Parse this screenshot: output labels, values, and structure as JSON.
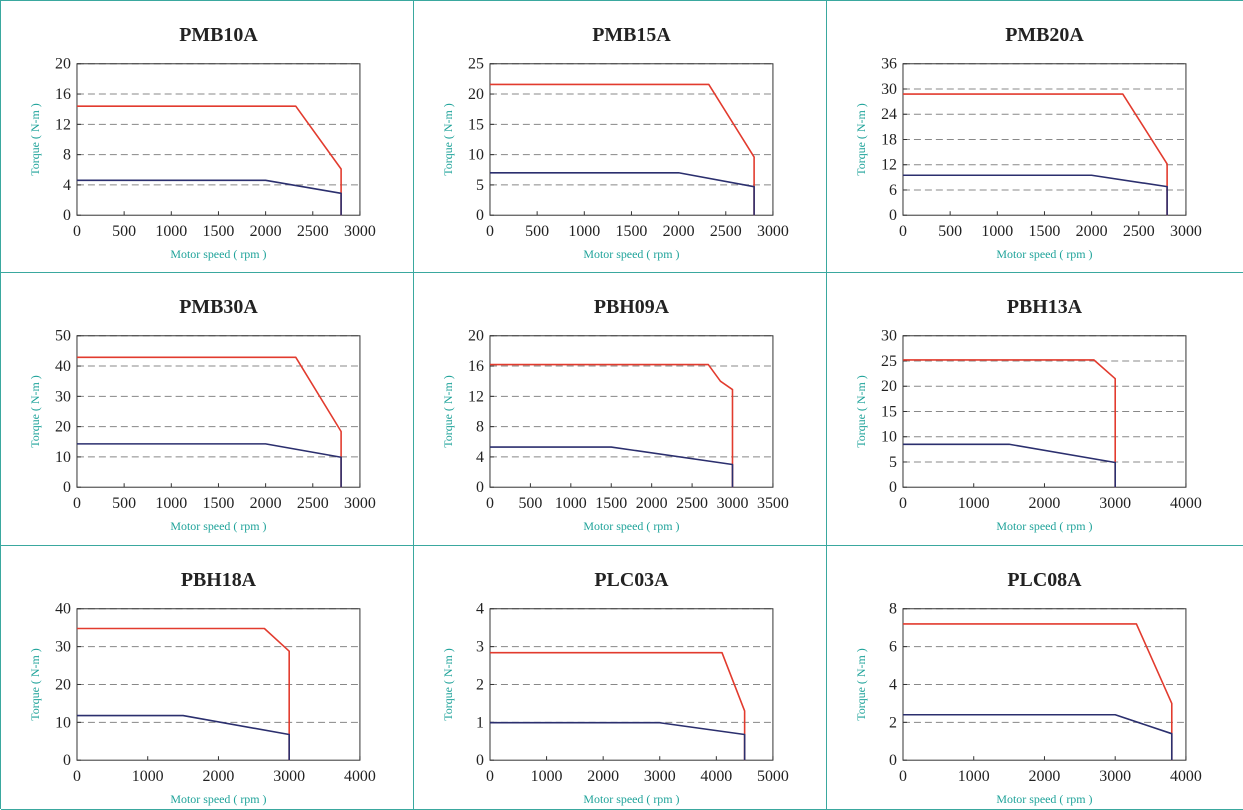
{
  "colors": {
    "accent": "#1fa39a",
    "peak_curve": "#e23b2e",
    "rated_curve": "#2b2f6e",
    "gridline": "#888888",
    "border": "#3aa89f"
  },
  "chart_data": [
    {
      "type": "line",
      "title": "PMB10A",
      "xlabel": "Motor speed ( rpm )",
      "ylabel": "Torque ( N-m )",
      "xlim": [
        0,
        3000
      ],
      "ylim": [
        0,
        20
      ],
      "xticks": [
        0,
        500,
        1000,
        1500,
        2000,
        2500,
        3000
      ],
      "yticks": [
        0,
        4,
        8,
        12,
        16,
        20
      ],
      "grid": "horizontal-dashed",
      "series": [
        {
          "x": [
            0,
            2320,
            2800,
            2800
          ],
          "y": [
            14.4,
            14.4,
            6.1,
            0
          ]
        },
        {
          "x": [
            0,
            2000,
            2800,
            2800
          ],
          "y": [
            4.6,
            4.6,
            2.9,
            0
          ]
        }
      ]
    },
    {
      "type": "line",
      "title": "PMB15A",
      "xlabel": "Motor speed ( rpm )",
      "ylabel": "Torque ( N-m )",
      "xlim": [
        0,
        3000
      ],
      "ylim": [
        0,
        25
      ],
      "xticks": [
        0,
        500,
        1000,
        1500,
        2000,
        2500,
        3000
      ],
      "yticks": [
        0,
        5,
        10,
        15,
        20,
        25
      ],
      "grid": "horizontal-dashed",
      "series": [
        {
          "x": [
            0,
            2320,
            2800,
            2800
          ],
          "y": [
            21.6,
            21.6,
            9.6,
            0
          ]
        },
        {
          "x": [
            0,
            2000,
            2800,
            2800
          ],
          "y": [
            7.0,
            7.0,
            4.7,
            0
          ]
        }
      ]
    },
    {
      "type": "line",
      "title": "PMB20A",
      "xlabel": "Motor speed ( rpm )",
      "ylabel": "Torque ( N-m )",
      "xlim": [
        0,
        3000
      ],
      "ylim": [
        0,
        36
      ],
      "xticks": [
        0,
        500,
        1000,
        1500,
        2000,
        2500,
        3000
      ],
      "yticks": [
        0,
        6,
        12,
        18,
        24,
        30,
        36
      ],
      "grid": "horizontal-dashed",
      "series": [
        {
          "x": [
            0,
            2330,
            2800,
            2800
          ],
          "y": [
            28.8,
            28.8,
            12.2,
            0
          ]
        },
        {
          "x": [
            0,
            2000,
            2800,
            2800
          ],
          "y": [
            9.5,
            9.5,
            6.8,
            0
          ]
        }
      ]
    },
    {
      "type": "line",
      "title": "PMB30A",
      "xlabel": "Motor speed ( rpm )",
      "ylabel": "Torque ( N-m )",
      "xlim": [
        0,
        3000
      ],
      "ylim": [
        0,
        50
      ],
      "xticks": [
        0,
        500,
        1000,
        1500,
        2000,
        2500,
        3000
      ],
      "yticks": [
        0,
        10,
        20,
        30,
        40,
        50
      ],
      "grid": "horizontal-dashed",
      "series": [
        {
          "x": [
            0,
            2320,
            2800,
            2800
          ],
          "y": [
            42.9,
            42.9,
            18.4,
            0
          ]
        },
        {
          "x": [
            0,
            2000,
            2800,
            2800
          ],
          "y": [
            14.3,
            14.3,
            9.9,
            0
          ]
        }
      ]
    },
    {
      "type": "line",
      "title": "PBH09A",
      "xlabel": "Motor speed ( rpm )",
      "ylabel": "Torque ( N-m )",
      "xlim": [
        0,
        3500
      ],
      "ylim": [
        0,
        20
      ],
      "xticks": [
        0,
        500,
        1000,
        1500,
        2000,
        2500,
        3000,
        3500
      ],
      "yticks": [
        0,
        4,
        8,
        12,
        16,
        20
      ],
      "grid": "horizontal-dashed",
      "series": [
        {
          "x": [
            0,
            2700,
            2850,
            3000,
            3000
          ],
          "y": [
            16.2,
            16.2,
            14.0,
            12.9,
            0
          ]
        },
        {
          "x": [
            0,
            1500,
            3000,
            3000
          ],
          "y": [
            5.3,
            5.3,
            3.0,
            0
          ]
        }
      ]
    },
    {
      "type": "line",
      "title": "PBH13A",
      "xlabel": "Motor speed ( rpm )",
      "ylabel": "Torque ( N-m )",
      "xlim": [
        0,
        4000
      ],
      "ylim": [
        0,
        30
      ],
      "xticks": [
        0,
        1000,
        2000,
        3000,
        4000
      ],
      "yticks": [
        0,
        5,
        10,
        15,
        20,
        25,
        30
      ],
      "grid": "horizontal-dashed",
      "series": [
        {
          "x": [
            0,
            2700,
            3000,
            3000
          ],
          "y": [
            25.2,
            25.2,
            21.5,
            0
          ]
        },
        {
          "x": [
            0,
            1500,
            3000,
            3000
          ],
          "y": [
            8.5,
            8.5,
            4.9,
            0
          ]
        }
      ]
    },
    {
      "type": "line",
      "title": "PBH18A",
      "xlabel": "Motor speed ( rpm )",
      "ylabel": "Torque ( N-m )",
      "xlim": [
        0,
        4000
      ],
      "ylim": [
        0,
        40
      ],
      "xticks": [
        0,
        1000,
        2000,
        3000,
        4000
      ],
      "yticks": [
        0,
        10,
        20,
        30,
        40
      ],
      "grid": "horizontal-dashed",
      "series": [
        {
          "x": [
            0,
            2650,
            3000,
            3000
          ],
          "y": [
            34.8,
            34.8,
            28.8,
            0
          ]
        },
        {
          "x": [
            0,
            1500,
            3000,
            3000
          ],
          "y": [
            11.8,
            11.8,
            6.8,
            0
          ]
        }
      ]
    },
    {
      "type": "line",
      "title": "PLC03A",
      "xlabel": "Motor speed ( rpm )",
      "ylabel": "Torque ( N-m )",
      "xlim": [
        0,
        5000
      ],
      "ylim": [
        0,
        4
      ],
      "xticks": [
        0,
        1000,
        2000,
        3000,
        4000,
        5000
      ],
      "yticks": [
        0,
        1,
        2,
        3,
        4
      ],
      "grid": "horizontal-dashed",
      "series": [
        {
          "x": [
            0,
            4100,
            4500,
            4500
          ],
          "y": [
            2.84,
            2.84,
            1.3,
            0
          ]
        },
        {
          "x": [
            0,
            3000,
            4500,
            4500
          ],
          "y": [
            0.99,
            0.99,
            0.68,
            0
          ]
        }
      ]
    },
    {
      "type": "line",
      "title": "PLC08A",
      "xlabel": "Motor speed ( rpm )",
      "ylabel": "Torque ( N-m )",
      "xlim": [
        0,
        4000
      ],
      "ylim": [
        0,
        8
      ],
      "xticks": [
        0,
        1000,
        2000,
        3000,
        4000
      ],
      "yticks": [
        0,
        2,
        4,
        6,
        8
      ],
      "grid": "horizontal-dashed",
      "series": [
        {
          "x": [
            0,
            3300,
            3800,
            3800
          ],
          "y": [
            7.2,
            7.2,
            3.0,
            0
          ]
        },
        {
          "x": [
            0,
            3000,
            3800,
            3800
          ],
          "y": [
            2.4,
            2.4,
            1.4,
            0
          ]
        }
      ]
    }
  ]
}
